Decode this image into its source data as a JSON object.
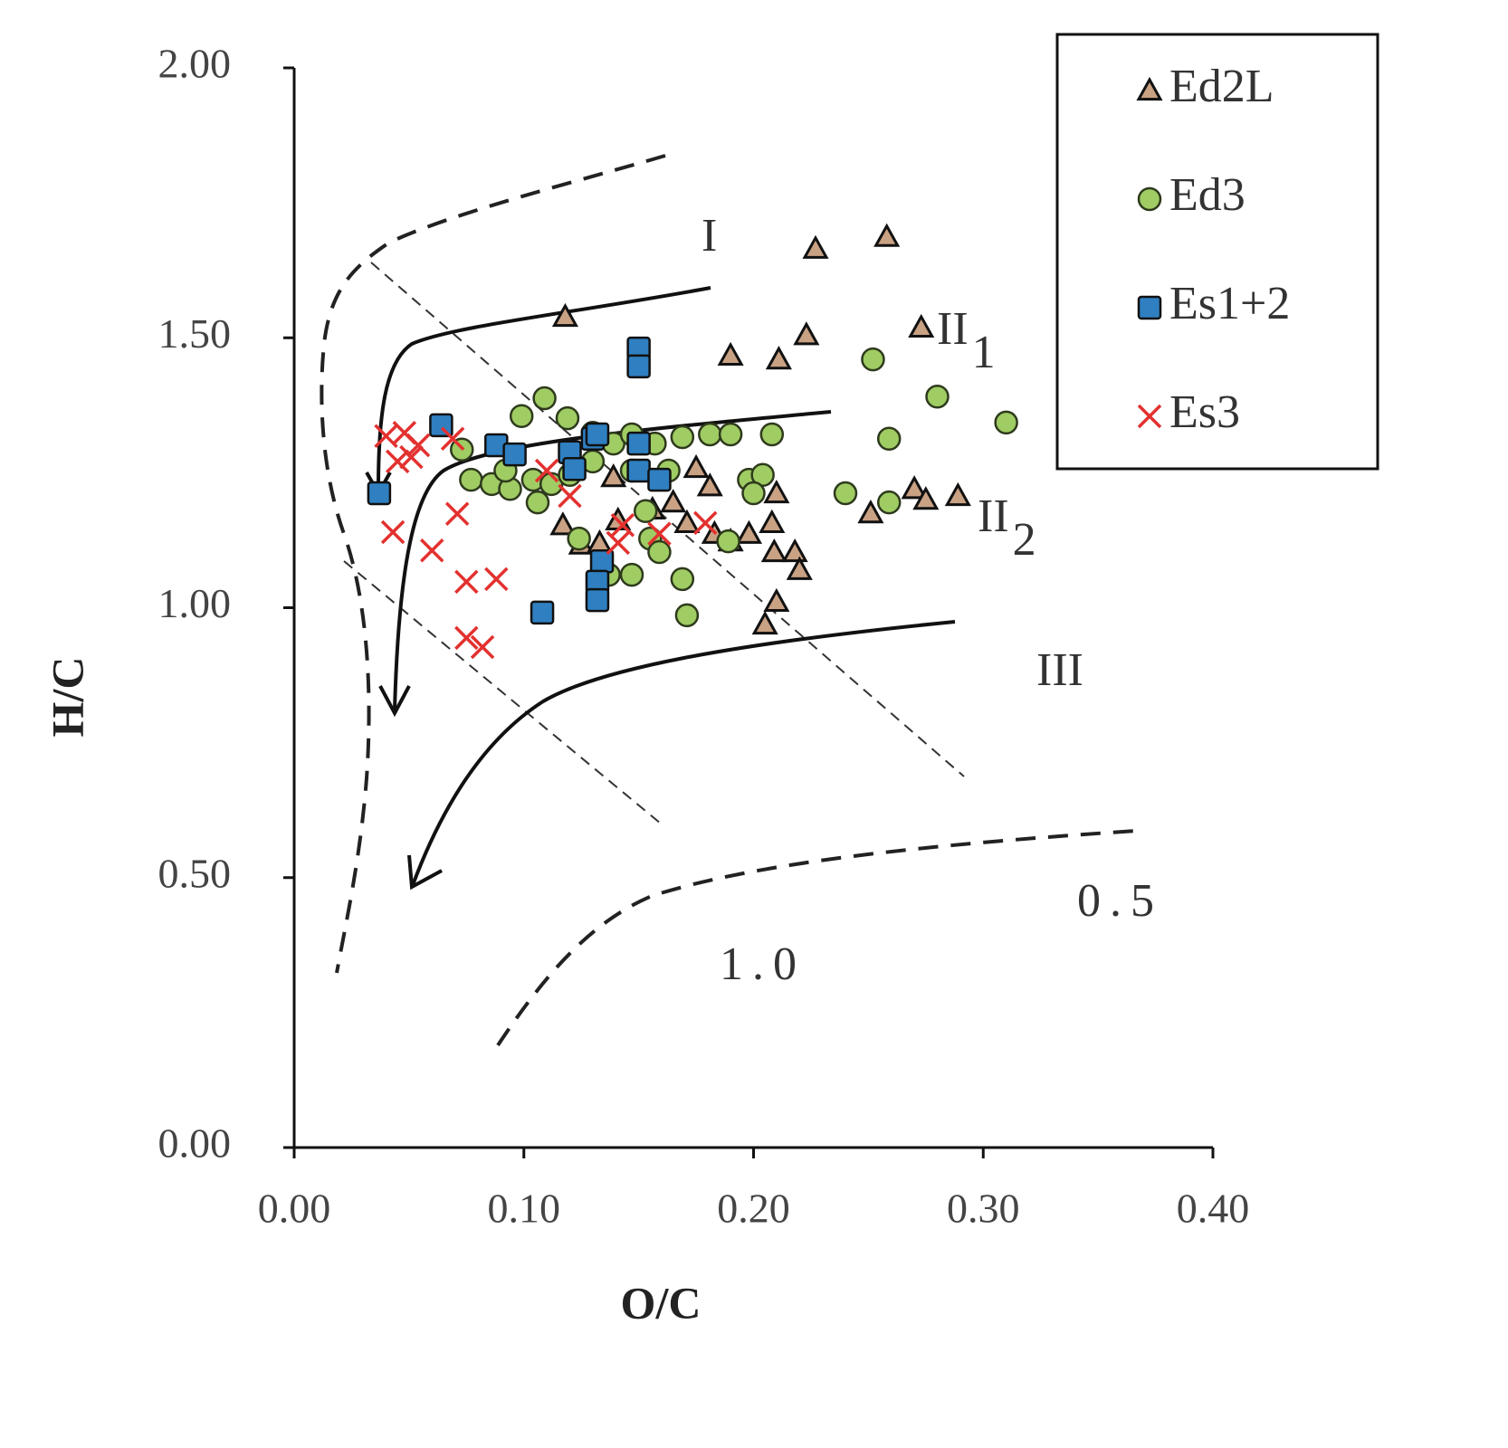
{
  "chart_data": {
    "type": "scatter",
    "xlabel": "O/C",
    "ylabel": "H/C",
    "xlim": [
      0,
      0.4
    ],
    "ylim": [
      0,
      2
    ],
    "xticks": [
      {
        "value": 0,
        "label": "0.00"
      },
      {
        "value": 0.1,
        "label": "0.10"
      },
      {
        "value": 0.2,
        "label": "0.20"
      },
      {
        "value": 0.3,
        "label": "0.30"
      },
      {
        "value": 0.4,
        "label": "0.40"
      }
    ],
    "yticks": [
      {
        "value": 0,
        "label": "0.00"
      },
      {
        "value": 0.5,
        "label": "0.50"
      },
      {
        "value": 1,
        "label": "1.00"
      },
      {
        "value": 1.5,
        "label": "1.50"
      },
      {
        "value": 2,
        "label": "2.00"
      }
    ],
    "legend": "upper right",
    "series": [
      {
        "name": "Ed2L",
        "color": "#c9a183",
        "marker": "triangle",
        "x": [
          0.227,
          0.258,
          0.118,
          0.273,
          0.223,
          0.19,
          0.211,
          0.175,
          0.181,
          0.117,
          0.125,
          0.133,
          0.141,
          0.156,
          0.165,
          0.171,
          0.183,
          0.19,
          0.198,
          0.208,
          0.21,
          0.209,
          0.218,
          0.22,
          0.21,
          0.205,
          0.27,
          0.275,
          0.289,
          0.251,
          0.139
        ],
        "values": [
          1.665,
          1.687,
          1.539,
          1.519,
          1.505,
          1.467,
          1.46,
          1.259,
          1.225,
          1.153,
          1.117,
          1.12,
          1.162,
          1.182,
          1.195,
          1.157,
          1.137,
          1.123,
          1.137,
          1.157,
          1.212,
          1.103,
          1.103,
          1.07,
          1.011,
          0.969,
          1.22,
          1.2,
          1.207,
          1.175,
          1.242
        ]
      },
      {
        "name": "Ed3",
        "color": "#9fcc63",
        "marker": "circle",
        "x": [
          0.099,
          0.109,
          0.119,
          0.13,
          0.139,
          0.147,
          0.157,
          0.169,
          0.181,
          0.19,
          0.208,
          0.073,
          0.077,
          0.086,
          0.094,
          0.104,
          0.112,
          0.12,
          0.13,
          0.147,
          0.163,
          0.092,
          0.106,
          0.153,
          0.155,
          0.147,
          0.159,
          0.169,
          0.171,
          0.189,
          0.198,
          0.204,
          0.2,
          0.252,
          0.28,
          0.31,
          0.259,
          0.24,
          0.259,
          0.137,
          0.124
        ],
        "values": [
          1.355,
          1.388,
          1.351,
          1.324,
          1.304,
          1.321,
          1.304,
          1.316,
          1.321,
          1.321,
          1.321,
          1.293,
          1.237,
          1.229,
          1.22,
          1.237,
          1.229,
          1.246,
          1.271,
          1.254,
          1.254,
          1.254,
          1.195,
          1.179,
          1.128,
          1.061,
          1.103,
          1.053,
          0.986,
          1.123,
          1.237,
          1.246,
          1.212,
          1.46,
          1.391,
          1.343,
          1.313,
          1.212,
          1.195,
          1.061,
          1.128
        ]
      },
      {
        "name": "Es1+2",
        "color": "#2f7fc1",
        "marker": "square",
        "x": [
          0.037,
          0.064,
          0.088,
          0.096,
          0.12,
          0.13,
          0.122,
          0.132,
          0.15,
          0.15,
          0.15,
          0.15,
          0.159,
          0.134,
          0.132,
          0.132,
          0.108
        ],
        "values": [
          1.212,
          1.338,
          1.301,
          1.284,
          1.288,
          1.313,
          1.257,
          1.321,
          1.48,
          1.447,
          1.304,
          1.254,
          1.237,
          1.086,
          1.048,
          1.014,
          0.991
        ]
      },
      {
        "name": "Es3",
        "color": "#e3312f",
        "marker": "cross",
        "x": [
          0.04,
          0.048,
          0.054,
          0.051,
          0.045,
          0.069,
          0.043,
          0.06,
          0.071,
          0.075,
          0.088,
          0.075,
          0.082,
          0.11,
          0.12,
          0.143,
          0.141,
          0.159,
          0.179
        ],
        "values": [
          1.318,
          1.324,
          1.301,
          1.279,
          1.271,
          1.313,
          1.14,
          1.106,
          1.174,
          1.048,
          1.053,
          0.944,
          0.927,
          1.254,
          1.207,
          1.153,
          1.12,
          1.137,
          1.157
        ]
      }
    ],
    "annotations": [
      {
        "text": "I"
      },
      {
        "text": "II",
        "subscript": "1"
      },
      {
        "text": "II",
        "subscript": "2"
      },
      {
        "text": "III"
      },
      {
        "text": "1.0"
      },
      {
        "text": "0.5"
      }
    ]
  }
}
